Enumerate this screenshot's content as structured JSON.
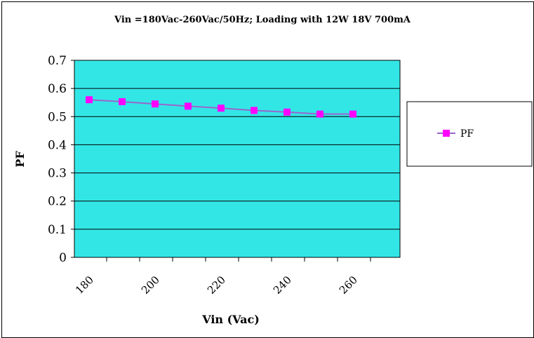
{
  "chart_data": {
    "type": "line",
    "title": "Vin =180Vac-260Vac/50Hz; Loading with 12W 18V 700mA",
    "xlabel": "Vin (Vac)",
    "ylabel": "PF",
    "x_tick_labels": [
      "180",
      "200",
      "220",
      "240",
      "260"
    ],
    "y_tick_labels": [
      "0",
      "0.1",
      "0.2",
      "0.3",
      "0.4",
      "0.5",
      "0.6",
      "0.7"
    ],
    "ylim": [
      0,
      0.7
    ],
    "grid": true,
    "legend_position": "right",
    "plot_background": "#33e6e6",
    "series_color": "#ff00ff",
    "line_color": "#9966cc",
    "x": [
      180,
      190,
      200,
      210,
      220,
      230,
      240,
      250,
      260
    ],
    "series": [
      {
        "name": "PF",
        "values": [
          0.56,
          0.553,
          0.545,
          0.537,
          0.53,
          0.522,
          0.516,
          0.509,
          0.509
        ]
      }
    ]
  }
}
